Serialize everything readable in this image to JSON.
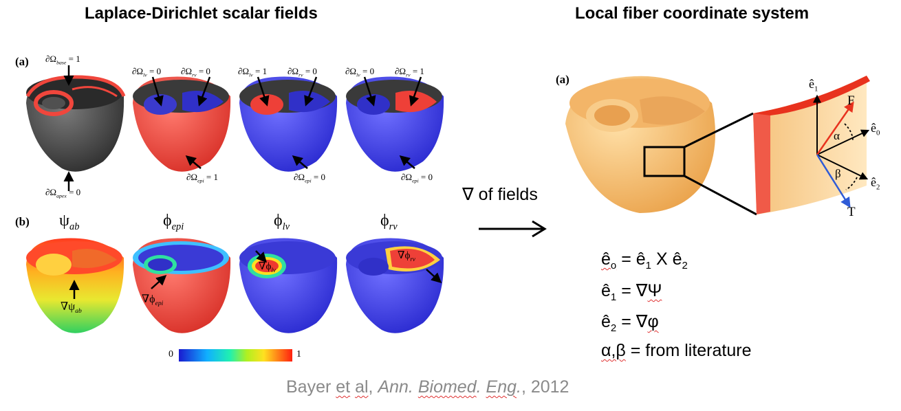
{
  "titles": {
    "left": "Laplace-Dirichlet scalar fields",
    "right": "Local fiber coordinate system"
  },
  "panel_a": {
    "label": "(a)",
    "boundary_labels": {
      "base": "∂Ω",
      "base_sub": "base",
      "base_val": " = 1",
      "apex": "∂Ω",
      "apex_sub": "apex",
      "apex_val": " = 0",
      "h2_lv": "∂Ω",
      "h2_lv_sub": "lv",
      "h2_lv_val": " = 0",
      "h2_rv": "∂Ω",
      "h2_rv_sub": "rv",
      "h2_rv_val": " = 0",
      "h2_epi": "∂Ω",
      "h2_epi_sub": "epi",
      "h2_epi_val": " = 1",
      "h3_lv": "∂Ω",
      "h3_lv_sub": "lv",
      "h3_lv_val": " = 1",
      "h3_rv": "∂Ω",
      "h3_rv_sub": "rv",
      "h3_rv_val": " = 0",
      "h3_epi": "∂Ω",
      "h3_epi_sub": "epi",
      "h3_epi_val": " = 0",
      "h4_lv": "∂Ω",
      "h4_lv_sub": "lv",
      "h4_lv_val": " = 0",
      "h4_rv": "∂Ω",
      "h4_rv_sub": "rv",
      "h4_rv_val": " = 1",
      "h4_epi": "∂Ω",
      "h4_epi_sub": "epi",
      "h4_epi_val": " = 0"
    }
  },
  "panel_b": {
    "label": "(b)",
    "titles": [
      {
        "sym": "ψ",
        "sub": "ab"
      },
      {
        "sym": "ϕ",
        "sub": "epi"
      },
      {
        "sym": "ϕ",
        "sub": "lv"
      },
      {
        "sym": "ϕ",
        "sub": "rv"
      }
    ],
    "gradients": [
      {
        "sym": "∇ψ",
        "sub": "ab"
      },
      {
        "sym": "∇ϕ",
        "sub": "epi"
      },
      {
        "sym": "∇ϕ",
        "sub": "lv"
      },
      {
        "sym": "∇ϕ",
        "sub": "rv"
      }
    ],
    "colorbar": {
      "min": "0",
      "max": "1"
    }
  },
  "arrow_text": "∇ of fields",
  "fiber_panel": {
    "label": "(a)",
    "e1": "ê",
    "e1_sub": "1",
    "e0": "ê",
    "e0_sub": "0",
    "e2": "ê",
    "e2_sub": "2",
    "F": "F",
    "T": "T",
    "alpha": "α",
    "beta": "β"
  },
  "equations": {
    "eq1_a": "ê",
    "eq1_a_sub": "o",
    "eq1_mid": " = ê",
    "eq1_b_sub": "1",
    "eq1_x": " X ê",
    "eq1_c_sub": "2",
    "eq2_a": "ê",
    "eq2_a_sub": "1",
    "eq2_mid": " = ∇",
    "eq2_sym": "Ψ",
    "eq3_a": "ê",
    "eq3_a_sub": "2",
    "eq3_mid": " = ∇",
    "eq3_sym": "φ",
    "eq4_sym": "α,β",
    "eq4_rest": " = from literature"
  },
  "citation": {
    "author": "Bayer",
    "et": "et",
    "al": "al",
    "comma1": ", ",
    "journal_a": "Ann.",
    "journal_b": "Biomed",
    "journal_c": ". ",
    "journal_d": "Eng",
    "journal_e": ".",
    "year": ", 2012"
  },
  "colors": {
    "grey_heart": "#505050",
    "red": "#f0463c",
    "blue": "#4a4af0",
    "orange": "#f7c27a",
    "fiber_red": "#e8321e",
    "fiber_blue": "#2f5bd6",
    "citation": "#8a8a8a"
  }
}
